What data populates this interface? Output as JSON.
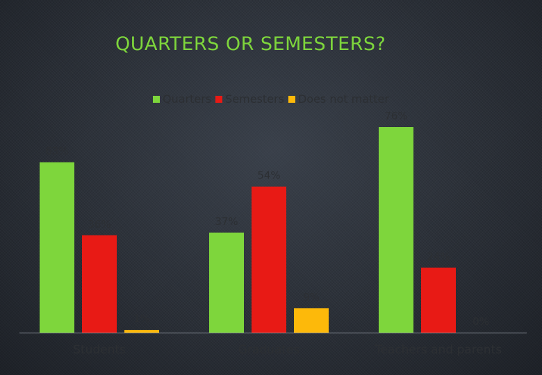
{
  "title": "QUARTERS OR SEMESTERS?",
  "colors": {
    "quarters": "#7ed63c",
    "semesters": "#e81a15",
    "does_not_matter": "#fdb90a",
    "axis": "#8a9099"
  },
  "chart_data": {
    "type": "bar",
    "title": "QUARTERS OR SEMESTERS?",
    "categories": [
      "Students",
      "Graduates",
      "Teachers and parents"
    ],
    "series": [
      {
        "name": "Quarters",
        "values": [
          63,
          37,
          76
        ],
        "labels": [
          "63%",
          "37%",
          "76%"
        ]
      },
      {
        "name": "Semesters",
        "values": [
          36,
          54,
          24
        ],
        "labels": [
          "36%",
          "54%",
          "24%"
        ]
      },
      {
        "name": "Does not matter",
        "values": [
          1,
          9,
          0
        ],
        "labels": [
          "1%",
          "9%",
          "0%"
        ]
      }
    ],
    "ylim": [
      0,
      80
    ],
    "legend_position": "top",
    "grid": false,
    "xlabel": "",
    "ylabel": ""
  }
}
